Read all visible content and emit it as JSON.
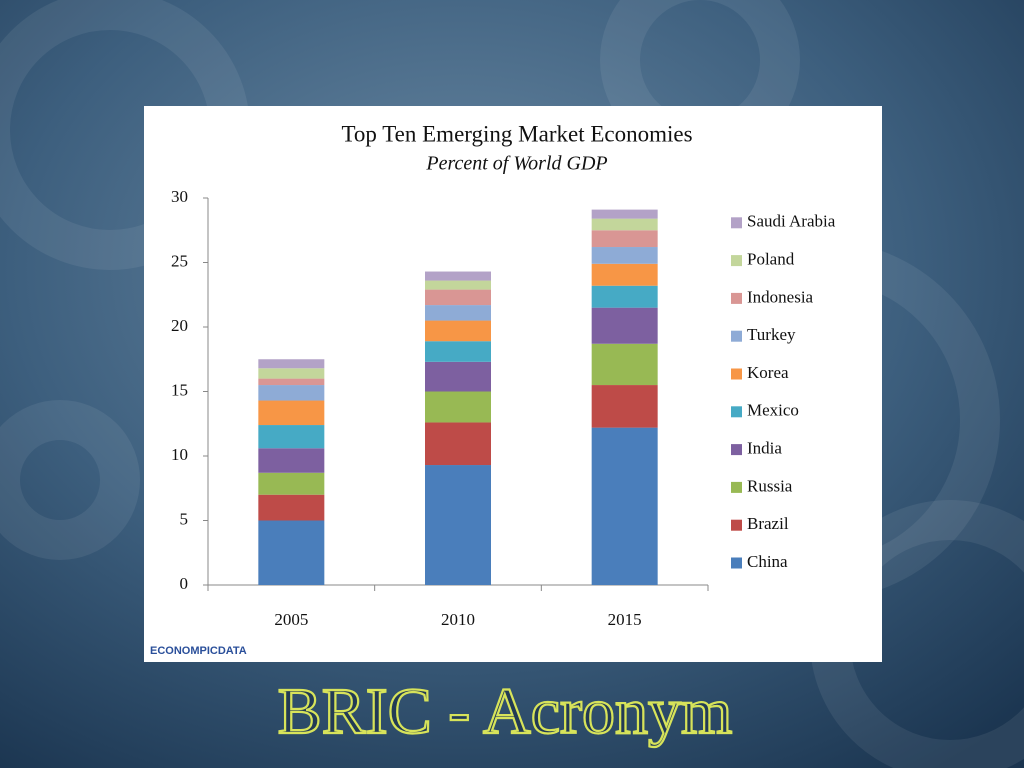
{
  "slide_title": "BRIC - Acronym",
  "logo": "ECONOMPICDATA",
  "chart_data": {
    "type": "bar",
    "stacked": true,
    "title": "Top Ten Emerging Market Economies",
    "subtitle": "Percent of World GDP",
    "categories": [
      "2005",
      "2010",
      "2015"
    ],
    "series": [
      {
        "name": "China",
        "color": "#4a7ebb",
        "values": [
          5.0,
          9.3,
          12.2
        ]
      },
      {
        "name": "Brazil",
        "color": "#be4b48",
        "values": [
          2.0,
          3.3,
          3.3
        ]
      },
      {
        "name": "Russia",
        "color": "#98b954",
        "values": [
          1.7,
          2.4,
          3.2
        ]
      },
      {
        "name": "India",
        "color": "#7d60a0",
        "values": [
          1.9,
          2.3,
          2.8
        ]
      },
      {
        "name": "Mexico",
        "color": "#46aac5",
        "values": [
          1.8,
          1.6,
          1.7
        ]
      },
      {
        "name": "Korea",
        "color": "#f79646",
        "values": [
          1.9,
          1.6,
          1.7
        ]
      },
      {
        "name": "Turkey",
        "color": "#8eabd6",
        "values": [
          1.2,
          1.2,
          1.3
        ]
      },
      {
        "name": "Indonesia",
        "color": "#d99694",
        "values": [
          0.5,
          1.2,
          1.3
        ]
      },
      {
        "name": "Poland",
        "color": "#c3d69b",
        "values": [
          0.8,
          0.7,
          0.9
        ]
      },
      {
        "name": "Saudi Arabia",
        "color": "#b3a2c7",
        "values": [
          0.7,
          0.7,
          0.7
        ]
      }
    ],
    "ylim": [
      0,
      30
    ],
    "yticks": [
      0,
      5,
      10,
      15,
      20,
      25,
      30
    ],
    "grid": false,
    "legend": "right"
  }
}
